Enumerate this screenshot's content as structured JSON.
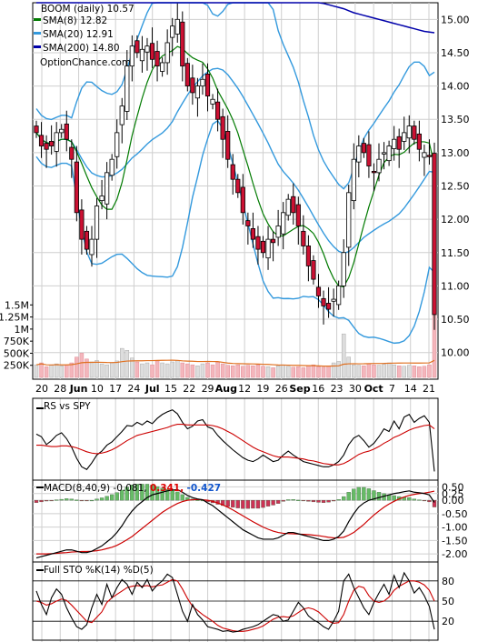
{
  "chart_data": [
    {
      "type": "candlestick",
      "name": "price",
      "legend": {
        "title": "BOOM (daily) 10.57",
        "items": [
          {
            "label": "SMA(8) 12.82",
            "color": "#007a00"
          },
          {
            "label": "SMA(20) 12.91",
            "color": "#3399dd"
          },
          {
            "label": "SMA(200) 14.80",
            "color": "#0000aa"
          }
        ],
        "source": "OptionChance.com"
      },
      "ylim": [
        9.6,
        15.25
      ],
      "yticks": [
        "15.00",
        "14.50",
        "14.00",
        "13.50",
        "13.00",
        "12.50",
        "12.00",
        "11.50",
        "11.00",
        "10.50",
        "10.00"
      ],
      "xticks": [
        "20",
        "28",
        "Jun",
        "10",
        "17",
        "24",
        "Jul",
        "15",
        "22",
        "29",
        "Aug",
        "12",
        "19",
        "26",
        "Sep",
        "16",
        "23",
        "30",
        "Oct",
        "7",
        "14",
        "21"
      ],
      "volume_ticks": [
        "1.5M",
        "1.25M",
        "1M",
        "750K",
        "500K",
        "250K"
      ],
      "volume_ylim": [
        0,
        1600000
      ],
      "closes": [
        13.3,
        13.1,
        13.05,
        13.1,
        13.3,
        13.35,
        13.2,
        12.9,
        12.1,
        11.7,
        11.55,
        11.7,
        12.2,
        12.35,
        12.7,
        12.9,
        13.3,
        13.7,
        14.3,
        14.6,
        14.5,
        14.55,
        14.6,
        14.4,
        14.3,
        14.35,
        14.65,
        14.9,
        15.0,
        14.3,
        14.0,
        13.9,
        14.0,
        14.1,
        13.85,
        13.8,
        13.5,
        13.2,
        12.9,
        12.6,
        12.4,
        12.1,
        11.9,
        11.7,
        11.55,
        11.5,
        11.7,
        11.65,
        11.9,
        12.1,
        12.3,
        12.1,
        11.9,
        11.6,
        11.3,
        11.1,
        10.85,
        10.7,
        10.65,
        10.8,
        11.0,
        11.5,
        12.4,
        12.9,
        13.1,
        13.0,
        12.8,
        12.7,
        12.9,
        13.0,
        13.1,
        13.2,
        13.05,
        13.3,
        13.4,
        13.2,
        13.05,
        13.0,
        12.95,
        10.57
      ],
      "volumes": [
        260000,
        300000,
        220000,
        250000,
        280000,
        240000,
        260000,
        300000,
        420000,
        500000,
        380000,
        320000,
        350000,
        280000,
        260000,
        300000,
        340000,
        600000,
        560000,
        400000,
        320000,
        280000,
        300000,
        260000,
        340000,
        300000,
        280000,
        320000,
        350000,
        300000,
        280000,
        260000,
        240000,
        280000,
        300000,
        260000,
        320000,
        280000,
        250000,
        240000,
        260000,
        230000,
        250000,
        240000,
        260000,
        230000,
        220000,
        200000,
        240000,
        260000,
        230000,
        210000,
        220000,
        200000,
        240000,
        260000,
        220000,
        210000,
        230000,
        300000,
        330000,
        900000,
        420000,
        260000,
        250000,
        240000,
        280000,
        260000,
        250000,
        270000,
        300000,
        260000,
        240000,
        230000,
        250000,
        240000,
        220000,
        230000,
        260000,
        1350000
      ],
      "sma200": [
        15.6,
        15.58,
        15.57,
        15.55,
        15.53,
        15.52,
        15.5,
        15.48,
        15.46,
        15.44,
        15.42,
        15.4,
        15.39,
        15.37,
        15.36,
        15.35,
        15.34,
        15.33,
        15.33,
        15.32,
        15.32,
        15.32,
        15.32,
        15.31,
        15.31,
        15.31,
        15.31,
        15.31,
        15.31,
        15.31,
        15.31,
        15.31,
        15.31,
        15.31,
        15.31,
        15.31,
        15.3,
        15.3,
        15.3,
        15.3,
        15.3,
        15.3,
        15.3,
        15.3,
        15.3,
        15.3,
        15.3,
        15.3,
        15.3,
        15.3,
        15.3,
        15.3,
        15.29,
        15.28,
        15.27,
        15.26,
        15.25,
        15.24,
        15.22,
        15.2,
        15.18,
        15.16,
        15.13,
        15.1,
        15.08,
        15.06,
        15.04,
        15.02,
        15.0,
        14.98,
        14.96,
        14.94,
        14.92,
        14.9,
        14.88,
        14.86,
        14.84,
        14.82,
        14.81,
        14.8
      ]
    },
    {
      "type": "line",
      "name": "RS vs SPY",
      "title": "RS vs SPY",
      "series": [
        {
          "name": "RS",
          "color": "#000000",
          "values": [
            0.62,
            0.58,
            0.46,
            0.52,
            0.6,
            0.64,
            0.55,
            0.42,
            0.25,
            0.12,
            0.08,
            0.18,
            0.3,
            0.36,
            0.45,
            0.5,
            0.58,
            0.66,
            0.75,
            0.74,
            0.8,
            0.76,
            0.82,
            0.78,
            0.86,
            0.92,
            0.96,
            0.99,
            0.93,
            0.8,
            0.7,
            0.74,
            0.82,
            0.84,
            0.73,
            0.7,
            0.6,
            0.52,
            0.45,
            0.38,
            0.32,
            0.26,
            0.22,
            0.2,
            0.24,
            0.3,
            0.25,
            0.2,
            0.22,
            0.3,
            0.36,
            0.3,
            0.25,
            0.2,
            0.18,
            0.16,
            0.14,
            0.12,
            0.12,
            0.15,
            0.2,
            0.3,
            0.46,
            0.56,
            0.6,
            0.52,
            0.42,
            0.48,
            0.58,
            0.7,
            0.66,
            0.82,
            0.7,
            0.88,
            0.92,
            0.8,
            0.86,
            0.9,
            0.8,
            0.05
          ]
        },
        {
          "name": "MA",
          "color": "#cc0000",
          "values": [
            0.45,
            0.45,
            0.44,
            0.43,
            0.43,
            0.44,
            0.44,
            0.43,
            0.41,
            0.38,
            0.35,
            0.33,
            0.32,
            0.33,
            0.35,
            0.38,
            0.42,
            0.47,
            0.52,
            0.56,
            0.6,
            0.62,
            0.64,
            0.66,
            0.68,
            0.7,
            0.72,
            0.75,
            0.77,
            0.77,
            0.76,
            0.76,
            0.76,
            0.76,
            0.76,
            0.75,
            0.73,
            0.7,
            0.66,
            0.62,
            0.57,
            0.52,
            0.47,
            0.42,
            0.38,
            0.35,
            0.32,
            0.29,
            0.27,
            0.27,
            0.27,
            0.26,
            0.25,
            0.24,
            0.22,
            0.21,
            0.19,
            0.17,
            0.16,
            0.15,
            0.15,
            0.17,
            0.21,
            0.26,
            0.31,
            0.34,
            0.36,
            0.39,
            0.43,
            0.48,
            0.52,
            0.57,
            0.6,
            0.64,
            0.68,
            0.71,
            0.73,
            0.75,
            0.76,
            0.7
          ]
        }
      ]
    },
    {
      "type": "line",
      "name": "MACD",
      "title": "MACD(8,40,9)",
      "value_main": "-0.081,",
      "value_signal": "0.341,",
      "value_hist": "-0.427",
      "colors": {
        "macd": "#000000",
        "signal": "#cc0000",
        "hist_up": "#66bb66",
        "hist_down": "#cc3355",
        "value_signal": "#dd0000",
        "value_hist": "#1155cc"
      },
      "ylim": [
        -2.3,
        0.75
      ],
      "yticks": [
        "0.50",
        "0.25",
        "0.00",
        "-0.50",
        "-1.00",
        "-1.50",
        "-2.00"
      ],
      "macd": [
        -2.15,
        -2.1,
        -2.05,
        -2.0,
        -1.95,
        -1.9,
        -1.85,
        -1.85,
        -1.9,
        -1.95,
        -1.95,
        -1.9,
        -1.8,
        -1.7,
        -1.55,
        -1.4,
        -1.2,
        -0.95,
        -0.65,
        -0.4,
        -0.2,
        -0.05,
        0.1,
        0.2,
        0.25,
        0.3,
        0.35,
        0.38,
        0.4,
        0.3,
        0.18,
        0.1,
        0.05,
        0.02,
        -0.1,
        -0.2,
        -0.35,
        -0.5,
        -0.65,
        -0.8,
        -0.95,
        -1.1,
        -1.2,
        -1.3,
        -1.4,
        -1.45,
        -1.45,
        -1.45,
        -1.4,
        -1.3,
        -1.2,
        -1.2,
        -1.25,
        -1.3,
        -1.35,
        -1.4,
        -1.45,
        -1.5,
        -1.5,
        -1.45,
        -1.35,
        -1.15,
        -0.8,
        -0.5,
        -0.25,
        -0.1,
        0.0,
        0.05,
        0.1,
        0.15,
        0.2,
        0.25,
        0.28,
        0.32,
        0.35,
        0.3,
        0.28,
        0.25,
        0.2,
        -0.08
      ],
      "signal": [
        -2.0,
        -2.0,
        -2.0,
        -1.99,
        -1.98,
        -1.96,
        -1.95,
        -1.93,
        -1.92,
        -1.91,
        -1.91,
        -1.9,
        -1.88,
        -1.85,
        -1.8,
        -1.75,
        -1.68,
        -1.58,
        -1.47,
        -1.35,
        -1.2,
        -1.05,
        -0.9,
        -0.75,
        -0.6,
        -0.45,
        -0.33,
        -0.22,
        -0.12,
        -0.05,
        0.0,
        0.02,
        0.03,
        0.02,
        0.0,
        -0.04,
        -0.1,
        -0.17,
        -0.26,
        -0.36,
        -0.47,
        -0.58,
        -0.69,
        -0.8,
        -0.9,
        -1.0,
        -1.08,
        -1.15,
        -1.2,
        -1.23,
        -1.24,
        -1.25,
        -1.26,
        -1.27,
        -1.28,
        -1.3,
        -1.32,
        -1.35,
        -1.38,
        -1.4,
        -1.4,
        -1.38,
        -1.3,
        -1.2,
        -1.05,
        -0.9,
        -0.72,
        -0.55,
        -0.4,
        -0.26,
        -0.14,
        -0.04,
        0.05,
        0.12,
        0.18,
        0.22,
        0.25,
        0.27,
        0.3,
        0.34
      ]
    },
    {
      "type": "line",
      "name": "Full STO",
      "title": "Full STO %K(14) %D(5)",
      "ylim": [
        0,
        100
      ],
      "yticks": [
        "80",
        "50",
        "20"
      ],
      "series": [
        {
          "name": "%K",
          "color": "#000000",
          "values": [
            65,
            45,
            30,
            55,
            68,
            60,
            40,
            25,
            12,
            8,
            15,
            40,
            60,
            45,
            75,
            55,
            70,
            82,
            75,
            60,
            78,
            70,
            82,
            65,
            74,
            80,
            90,
            85,
            60,
            35,
            20,
            45,
            30,
            22,
            12,
            10,
            8,
            5,
            6,
            4,
            5,
            8,
            10,
            12,
            15,
            20,
            25,
            30,
            28,
            20,
            22,
            35,
            48,
            40,
            28,
            22,
            18,
            12,
            8,
            20,
            35,
            80,
            90,
            70,
            55,
            40,
            30,
            48,
            62,
            75,
            60,
            88,
            70,
            92,
            80,
            62,
            70,
            58,
            42,
            8
          ]
        },
        {
          "name": "%D",
          "color": "#cc0000",
          "values": [
            50,
            48,
            44,
            46,
            50,
            53,
            51,
            44,
            36,
            28,
            20,
            18,
            26,
            34,
            48,
            55,
            60,
            65,
            70,
            72,
            73,
            72,
            73,
            71,
            73,
            74,
            78,
            82,
            80,
            68,
            54,
            42,
            36,
            30,
            25,
            20,
            14,
            10,
            8,
            6,
            5,
            5,
            6,
            8,
            10,
            13,
            18,
            23,
            26,
            27,
            26,
            28,
            33,
            38,
            40,
            38,
            34,
            27,
            20,
            17,
            18,
            30,
            50,
            66,
            72,
            70,
            58,
            50,
            48,
            50,
            56,
            66,
            72,
            76,
            80,
            80,
            78,
            74,
            66,
            50
          ]
        }
      ]
    }
  ]
}
